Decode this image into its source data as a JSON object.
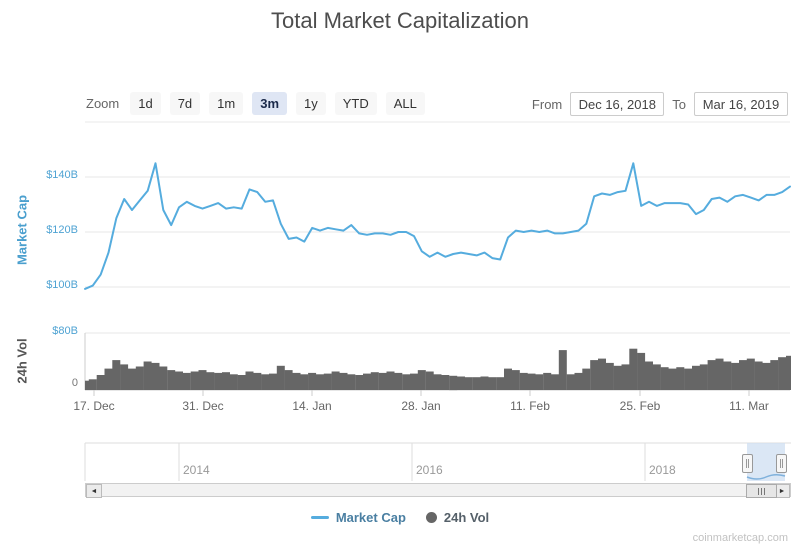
{
  "header": {
    "title": "Total Market Capitalization"
  },
  "toolbar": {
    "zoom_label": "Zoom",
    "zoom_buttons": [
      "1d",
      "7d",
      "1m",
      "3m",
      "1y",
      "YTD",
      "ALL"
    ],
    "selected_zoom": "3m",
    "from_label": "From",
    "from_value": "Dec 16, 2018",
    "to_label": "To",
    "to_value": "Mar 16, 2019"
  },
  "main_chart": {
    "y_axis_title": "Market Cap",
    "y_tick_labels": [
      "$140B",
      "$120B",
      "$100B"
    ]
  },
  "volume_chart": {
    "y_axis_title": "24h Vol",
    "y_tick_labels": [
      "$80B",
      "0"
    ]
  },
  "x_axis": {
    "labels": [
      "17. Dec",
      "31. Dec",
      "14. Jan",
      "28. Jan",
      "11. Feb",
      "25. Feb",
      "11. Mar"
    ]
  },
  "navigator": {
    "year_labels": [
      "2014",
      "2016",
      "2018"
    ]
  },
  "legend": [
    {
      "label": "Market Cap",
      "marker": "line",
      "label_color": "#4a7fa2"
    },
    {
      "label": "24h Vol",
      "marker": "circle",
      "label_color": "#556069"
    }
  ],
  "watermark": "coinmarketcap.com",
  "colors": {
    "line": "#55ACDE",
    "bars": "#666666",
    "axis_label_blue": "#4fa3d3",
    "navigator_selection": "#cfdff1",
    "selected_zoom_bg": "#dfe6f4"
  },
  "chart_data": [
    {
      "type": "line",
      "name": "Market Cap",
      "title": "Total Market Capitalization",
      "ylabel": "Market Cap",
      "unit": "USD billions",
      "x_start": "2018-12-16",
      "x_end": "2019-03-16",
      "interval_days": 1,
      "ylim": [
        94,
        148
      ],
      "y_ticks": [
        100,
        120,
        140
      ],
      "values": [
        99.3,
        100.5,
        104.5,
        112.5,
        125,
        132,
        128,
        131.5,
        135,
        145,
        128,
        122.5,
        129,
        131,
        129.5,
        128.5,
        129.5,
        130.5,
        128.5,
        129,
        128.5,
        135.5,
        134.5,
        131,
        131.5,
        123,
        117.5,
        118,
        116.5,
        121.5,
        120.5,
        121.5,
        121,
        120.5,
        122.5,
        119.5,
        119,
        119.5,
        119.5,
        119,
        120,
        120,
        118.5,
        113,
        111,
        112.5,
        111,
        112,
        112.5,
        112,
        111.5,
        112.5,
        110.5,
        110,
        118,
        120.5,
        120,
        120.5,
        120,
        120.5,
        119.5,
        119.5,
        120,
        120.5,
        123,
        133,
        134,
        133.5,
        134.5,
        135,
        145,
        129.5,
        131,
        129.5,
        130.5,
        130.5,
        130.5,
        130,
        126.5,
        128,
        132,
        132.5,
        131,
        133,
        133.5,
        132.5,
        131.5,
        133.5,
        133.5,
        134.5,
        136.5
      ]
    },
    {
      "type": "bar",
      "name": "24h Vol",
      "ylabel": "24h Vol",
      "unit": "USD billions",
      "x_start": "2018-12-16",
      "x_end": "2019-03-16",
      "interval_days": 1,
      "ylim": [
        0,
        80
      ],
      "y_ticks": [
        0,
        80
      ],
      "values": [
        13,
        15,
        21,
        30,
        42,
        36,
        30,
        33,
        40,
        38,
        33,
        28,
        26,
        24,
        26,
        28,
        25,
        24,
        25,
        22,
        21,
        26,
        24,
        22,
        23,
        34,
        28,
        24,
        22,
        24,
        22,
        23,
        26,
        24,
        22,
        21,
        23,
        25,
        24,
        26,
        24,
        22,
        23,
        28,
        26,
        22,
        21,
        20,
        19,
        18,
        18,
        19,
        18,
        18,
        30,
        28,
        24,
        23,
        22,
        24,
        22,
        56,
        22,
        24,
        30,
        42,
        44,
        38,
        34,
        36,
        58,
        52,
        40,
        36,
        32,
        30,
        32,
        30,
        34,
        36,
        42,
        44,
        40,
        38,
        42,
        44,
        40,
        38,
        42,
        46,
        48
      ]
    }
  ]
}
